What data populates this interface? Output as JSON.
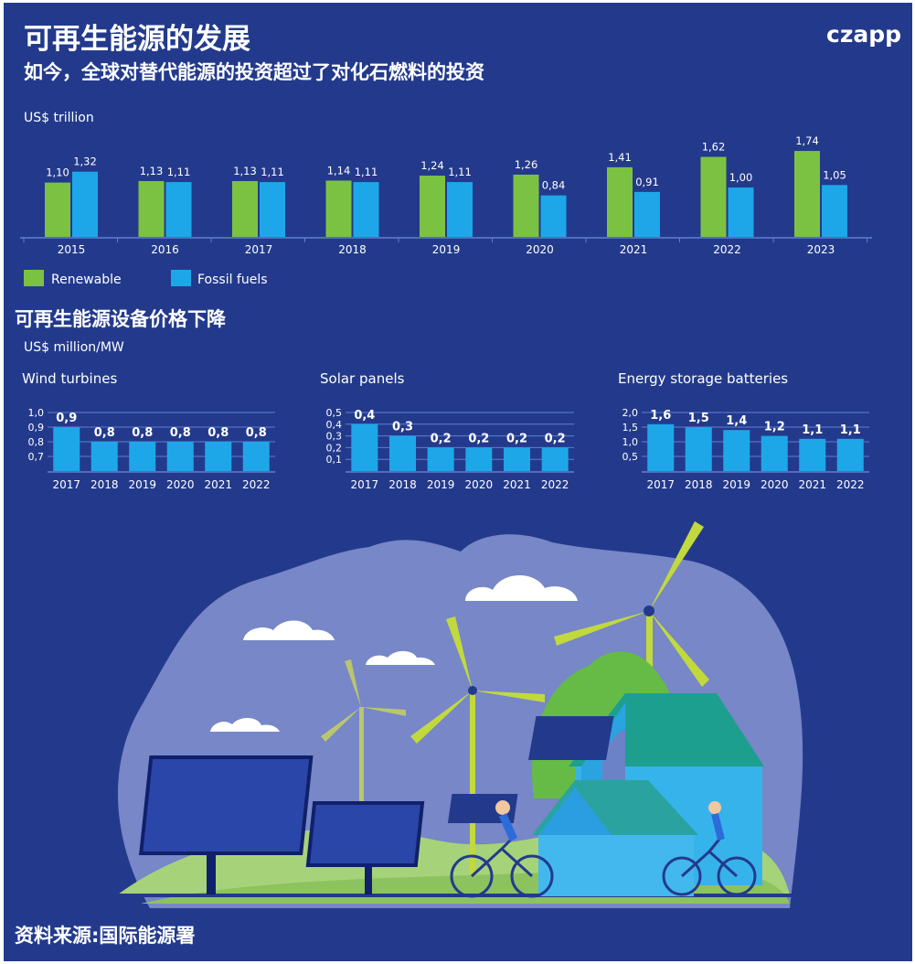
{
  "header": {
    "title": "可再生能源的发展",
    "subtitle": "如今，全球对替代能源的投资超过了对化石燃料的投资",
    "logo_text": "czapp"
  },
  "section2_title": "可再生能源设备价格下降",
  "source": "资料来源:国际能源署",
  "colors": {
    "background": "#233a8c",
    "renewable": "#7cc242",
    "fossil": "#1ea7e8",
    "axis": "#5f7fd0"
  },
  "chart_data": [
    {
      "type": "bar",
      "ylabel": "US$ trillion",
      "categories": [
        "2015",
        "2016",
        "2017",
        "2018",
        "2019",
        "2020",
        "2021",
        "2022",
        "2023"
      ],
      "series": [
        {
          "name": "Renewable",
          "values": [
            1.1,
            1.13,
            1.13,
            1.14,
            1.24,
            1.26,
            1.41,
            1.62,
            1.74
          ],
          "labels": [
            "1,10",
            "1,13",
            "1,13",
            "1,14",
            "1,24",
            "1,26",
            "1,41",
            "1,62",
            "1,74"
          ]
        },
        {
          "name": "Fossil fuels",
          "values": [
            1.32,
            1.11,
            1.11,
            1.11,
            1.11,
            0.84,
            0.91,
            1.0,
            1.05
          ],
          "labels": [
            "1,32",
            "1,11",
            "1,11",
            "1,11",
            "1,11",
            "0,84",
            "0,91",
            "1,00",
            "1,05"
          ]
        }
      ],
      "legend": "bottom-left",
      "grid": false
    },
    {
      "type": "bar",
      "unit_label": "US$ million/MW",
      "title": "Wind turbines",
      "categories": [
        "2017",
        "2018",
        "2019",
        "2020",
        "2021",
        "2022"
      ],
      "values": [
        0.9,
        0.8,
        0.8,
        0.8,
        0.8,
        0.8
      ],
      "value_labels": [
        "0,9",
        "0,8",
        "0,8",
        "0,8",
        "0,8",
        "0,8"
      ],
      "yticks": [
        "1,0",
        "0,9",
        "0,8",
        "0,7"
      ],
      "ylim": [
        0.6,
        1.0
      ],
      "grid": true
    },
    {
      "type": "bar",
      "title": "Solar panels",
      "categories": [
        "2017",
        "2018",
        "2019",
        "2020",
        "2021",
        "2022"
      ],
      "values": [
        0.4,
        0.3,
        0.2,
        0.2,
        0.2,
        0.2
      ],
      "value_labels": [
        "0,4",
        "0,3",
        "0,2",
        "0,2",
        "0,2",
        "0,2"
      ],
      "yticks": [
        "0,5",
        "0,4",
        "0,3",
        "0,2",
        "0,1"
      ],
      "ylim": [
        0.0,
        0.5
      ],
      "grid": true
    },
    {
      "type": "bar",
      "title": "Energy storage batteries",
      "categories": [
        "2017",
        "2018",
        "2019",
        "2020",
        "2021",
        "2022"
      ],
      "values": [
        1.6,
        1.5,
        1.4,
        1.2,
        1.1,
        1.1
      ],
      "value_labels": [
        "1,6",
        "1,5",
        "1,4",
        "1,2",
        "1,1",
        "1,1"
      ],
      "yticks": [
        "2,0",
        "1,5",
        "1,0",
        "0,5"
      ],
      "ylim": [
        0.0,
        2.0
      ],
      "grid": true
    }
  ]
}
